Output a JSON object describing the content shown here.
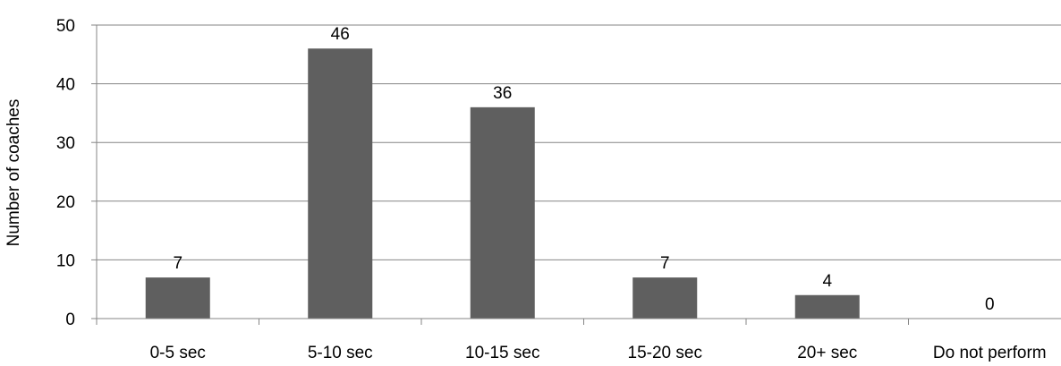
{
  "chart_data": {
    "type": "bar",
    "categories": [
      "0-5 sec",
      "5-10 sec",
      "10-15 sec",
      "15-20 sec",
      "20+ sec",
      "Do not perform"
    ],
    "values": [
      7,
      46,
      36,
      7,
      4,
      0
    ],
    "data_labels": [
      "7",
      "46",
      "36",
      "7",
      "4",
      "0"
    ],
    "title": "",
    "xlabel": "",
    "ylabel": "Number of coaches",
    "ylim": [
      0,
      50
    ],
    "yticks": [
      0,
      10,
      20,
      30,
      40,
      50
    ],
    "grid": true,
    "legend": "none",
    "colors": {
      "bar": "#5f5f5f",
      "grid": "#868686",
      "axis": "#868686"
    }
  }
}
